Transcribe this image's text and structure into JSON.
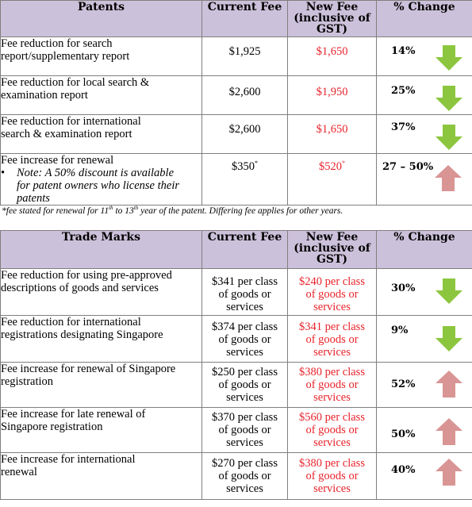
{
  "patents": {
    "headers": {
      "category": "Patents",
      "current": "Current Fee",
      "new_line1": "New Fee",
      "new_line2": "(inclusive of",
      "new_line3": "GST)",
      "change": "% Change"
    },
    "rows": [
      {
        "desc_line1": "Fee reduction for search",
        "desc_line2": "report/supplementary report",
        "current": "$1,925",
        "new": "$1,650",
        "change": "14%",
        "direction": "down"
      },
      {
        "desc_line1": "Fee reduction for local search &",
        "desc_line2": "examination report",
        "current": "$2,600",
        "new": "$1,950",
        "change": "25%",
        "direction": "down"
      },
      {
        "desc_line1": "Fee reduction for international",
        "desc_line2": "search & examination report",
        "current": "$2,600",
        "new": "$1,650",
        "change": "37%",
        "direction": "down"
      },
      {
        "desc_line1": "Fee increase for renewal",
        "note_bullet": "•",
        "note_line1": "Note: A 50% discount is available",
        "note_line2": "for patent owners who license their",
        "note_line3": "patents",
        "current": "$350",
        "current_mark": "*",
        "new": "$520",
        "new_mark": "*",
        "change": "27 – 50%",
        "direction": "up"
      }
    ],
    "footnote": {
      "part1": "*fee stated for renewal for 11",
      "sup1": "th",
      "part2": " to 13",
      "sup2": "th",
      "part3": " year of the patent. Differing fee applies for other years."
    }
  },
  "trade_marks": {
    "headers": {
      "category": "Trade Marks",
      "current": "Current Fee",
      "new_line1": "New Fee",
      "new_line2": "(inclusive of",
      "new_line3": "GST)",
      "change": "% Change"
    },
    "rows": [
      {
        "desc_line1": "Fee reduction for using pre-approved",
        "desc_line2": "descriptions of goods and services",
        "current_l1": "$341 per class",
        "current_l2": "of goods or",
        "current_l3": "services",
        "new_l1": "$240 per class",
        "new_l2": "of goods or",
        "new_l3": "services",
        "change": "30%",
        "direction": "down"
      },
      {
        "desc_line1": "Fee reduction for international",
        "desc_line2": "registrations designating Singapore",
        "current_l1": "$374 per class",
        "current_l2": "of goods or",
        "current_l3": "services",
        "new_l1": "$341 per class",
        "new_l2": "of goods or",
        "new_l3": "services",
        "change": "9%",
        "direction": "down"
      },
      {
        "desc_line1": "Fee increase for renewal of Singapore",
        "desc_line2": "registration",
        "current_l1": "$250 per class",
        "current_l2": "of goods or",
        "current_l3": "services",
        "new_l1": "$380 per class",
        "new_l2": "of goods or",
        "new_l3": "services",
        "change": "52%",
        "direction": "up"
      },
      {
        "desc_line1": "Fee increase for late renewal of",
        "desc_line2": "Singapore registration",
        "current_l1": "$370 per class",
        "current_l2": "of goods or",
        "current_l3": "services",
        "new_l1": "$560 per class",
        "new_l2": "of goods or",
        "new_l3": "services",
        "change": "50%",
        "direction": "up"
      },
      {
        "desc_line1": "Fee increase for international",
        "desc_line2": "renewal",
        "current_l1": "$270 per class",
        "current_l2": "of goods or",
        "current_l3": "services",
        "new_l1": "$380 per class",
        "new_l2": "of goods or",
        "new_l3": "services",
        "change": "40%",
        "direction": "up"
      }
    ]
  },
  "colors": {
    "header_bg": "#ccc1da",
    "new_fee_text": "#e8232b",
    "down_arrow": "#8cc63f",
    "up_arrow": "#d99594",
    "border": "#7f7f7f"
  }
}
